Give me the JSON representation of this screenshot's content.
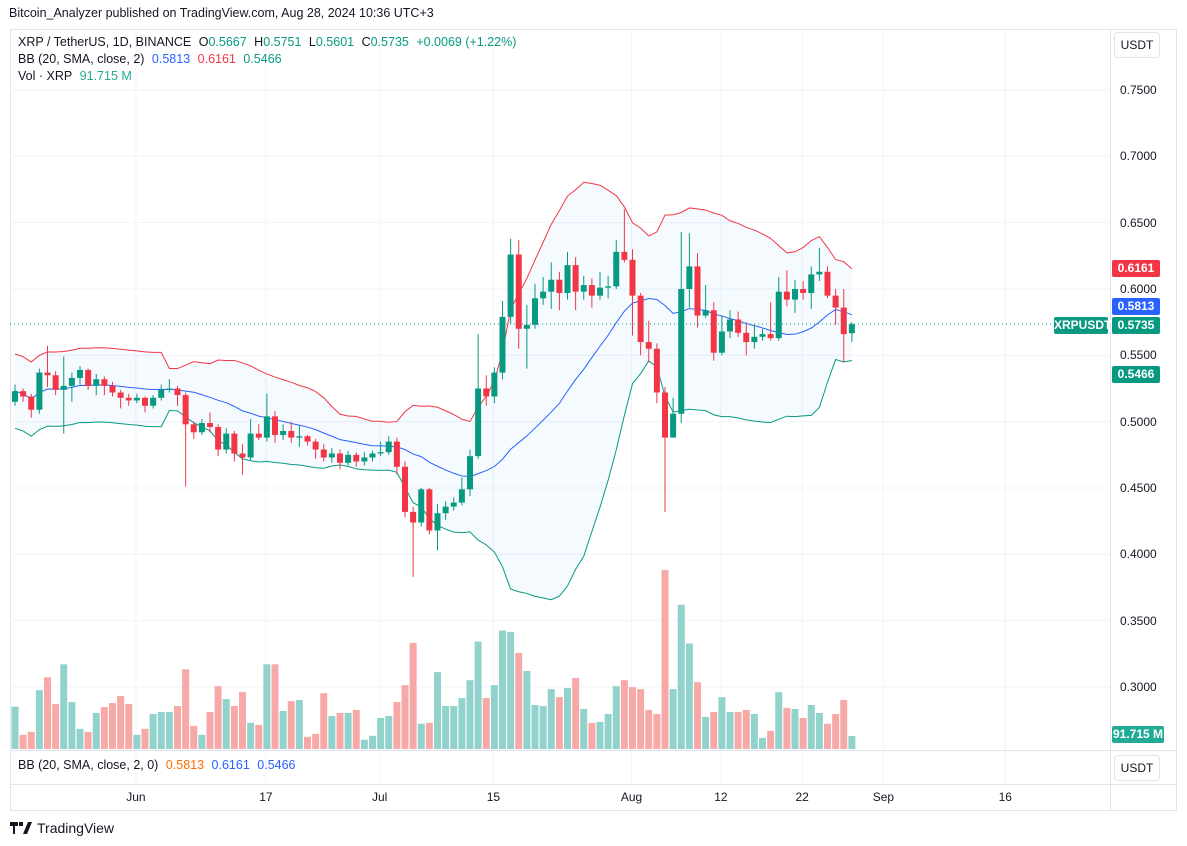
{
  "publisher_line": "Bitcoin_Analyzer published on TradingView.com, Aug 28, 2024 10:36 UTC+3",
  "legend": {
    "symbol": "XRP / TetherUS, 1D, BINANCE",
    "o_label": "O",
    "o": "0.5667",
    "h_label": "H",
    "h": "0.5751",
    "l_label": "L",
    "l": "0.5601",
    "c_label": "C",
    "c": "0.5735",
    "change": "+0.0069 (+1.22%)",
    "bb_label": "BB (20, SMA, close, 2)",
    "bb_basis": "0.5813",
    "bb_upper": "0.6161",
    "bb_lower": "0.5466",
    "vol_label": "Vol · XRP",
    "vol_value": "91.715 M"
  },
  "lower_pane": {
    "bb_label": "BB (20, SMA, close, 2, 0)",
    "basis": "0.5813",
    "upper": "0.6161",
    "lower": "0.5466",
    "currency": "USDT"
  },
  "price_axis": {
    "currency": "USDT",
    "ticks": [
      "0.7500",
      "0.7000",
      "0.6500",
      "0.6000",
      "0.5500",
      "0.5000",
      "0.4500",
      "0.4000",
      "0.3500",
      "0.3000"
    ],
    "labels": {
      "upper": "0.6161",
      "basis": "0.5813",
      "last": "0.5735",
      "symbol_tag": "XRPUSDT",
      "lower": "0.5466",
      "volume": "91.715 M"
    }
  },
  "footer": {
    "brand": "TradingView"
  },
  "colors": {
    "up": "#089981",
    "down": "#f23645",
    "bb_upper": "#f23645",
    "bb_basis": "#2962ff",
    "bb_lower": "#089981",
    "vol_up": "#92d2cc",
    "vol_down": "#f7a9a7"
  },
  "chart_data": {
    "type": "candlestick",
    "symbol": "XRPUSDT",
    "interval": "1D",
    "x_ticks": [
      "Jun",
      "17",
      "Jul",
      "15",
      "Aug",
      "12",
      "22",
      "Sep",
      "16"
    ],
    "y_range": [
      0.28,
      0.78
    ],
    "grid": true,
    "indicators": [
      "BB (20, SMA, close, 2)",
      "Volume"
    ],
    "ohlc": [
      [
        0.515,
        0.528,
        0.512,
        0.523
      ],
      [
        0.523,
        0.525,
        0.515,
        0.519
      ],
      [
        0.519,
        0.521,
        0.503,
        0.509
      ],
      [
        0.509,
        0.54,
        0.506,
        0.537
      ],
      [
        0.537,
        0.557,
        0.526,
        0.535
      ],
      [
        0.535,
        0.538,
        0.52,
        0.524
      ],
      [
        0.524,
        0.549,
        0.491,
        0.527
      ],
      [
        0.527,
        0.537,
        0.515,
        0.533
      ],
      [
        0.533,
        0.542,
        0.528,
        0.539
      ],
      [
        0.539,
        0.54,
        0.524,
        0.527
      ],
      [
        0.527,
        0.536,
        0.52,
        0.532
      ],
      [
        0.532,
        0.534,
        0.52,
        0.527
      ],
      [
        0.527,
        0.53,
        0.519,
        0.522
      ],
      [
        0.522,
        0.524,
        0.51,
        0.518
      ],
      [
        0.518,
        0.521,
        0.512,
        0.516
      ],
      [
        0.516,
        0.521,
        0.514,
        0.518
      ],
      [
        0.518,
        0.519,
        0.507,
        0.512
      ],
      [
        0.512,
        0.52,
        0.51,
        0.518
      ],
      [
        0.518,
        0.528,
        0.516,
        0.524
      ],
      [
        0.524,
        0.532,
        0.522,
        0.525
      ],
      [
        0.525,
        0.527,
        0.512,
        0.52
      ],
      [
        0.52,
        0.522,
        0.451,
        0.498
      ],
      [
        0.498,
        0.5,
        0.487,
        0.492
      ],
      [
        0.492,
        0.502,
        0.49,
        0.499
      ],
      [
        0.499,
        0.507,
        0.492,
        0.496
      ],
      [
        0.496,
        0.498,
        0.474,
        0.479
      ],
      [
        0.479,
        0.495,
        0.476,
        0.491
      ],
      [
        0.491,
        0.493,
        0.47,
        0.476
      ],
      [
        0.476,
        0.483,
        0.46,
        0.473
      ],
      [
        0.473,
        0.502,
        0.471,
        0.491
      ],
      [
        0.491,
        0.498,
        0.486,
        0.488
      ],
      [
        0.488,
        0.521,
        0.485,
        0.504
      ],
      [
        0.504,
        0.508,
        0.484,
        0.49
      ],
      [
        0.49,
        0.498,
        0.486,
        0.493
      ],
      [
        0.493,
        0.5,
        0.484,
        0.488
      ],
      [
        0.488,
        0.497,
        0.481,
        0.489
      ],
      [
        0.489,
        0.49,
        0.482,
        0.485
      ],
      [
        0.485,
        0.487,
        0.472,
        0.479
      ],
      [
        0.479,
        0.483,
        0.47,
        0.473
      ],
      [
        0.473,
        0.48,
        0.469,
        0.476
      ],
      [
        0.476,
        0.479,
        0.464,
        0.469
      ],
      [
        0.469,
        0.478,
        0.467,
        0.475
      ],
      [
        0.475,
        0.477,
        0.466,
        0.47
      ],
      [
        0.47,
        0.477,
        0.467,
        0.473
      ],
      [
        0.473,
        0.478,
        0.47,
        0.476
      ],
      [
        0.476,
        0.485,
        0.474,
        0.477
      ],
      [
        0.477,
        0.489,
        0.475,
        0.485
      ],
      [
        0.485,
        0.488,
        0.46,
        0.466
      ],
      [
        0.466,
        0.47,
        0.428,
        0.432
      ],
      [
        0.432,
        0.436,
        0.383,
        0.424
      ],
      [
        0.424,
        0.45,
        0.421,
        0.449
      ],
      [
        0.449,
        0.45,
        0.415,
        0.418
      ],
      [
        0.418,
        0.438,
        0.403,
        0.431
      ],
      [
        0.431,
        0.44,
        0.426,
        0.436
      ],
      [
        0.436,
        0.443,
        0.433,
        0.439
      ],
      [
        0.439,
        0.458,
        0.437,
        0.449
      ],
      [
        0.449,
        0.479,
        0.444,
        0.474
      ],
      [
        0.474,
        0.566,
        0.472,
        0.525
      ],
      [
        0.525,
        0.535,
        0.512,
        0.519
      ],
      [
        0.519,
        0.541,
        0.514,
        0.537
      ],
      [
        0.537,
        0.591,
        0.532,
        0.579
      ],
      [
        0.579,
        0.638,
        0.574,
        0.626
      ],
      [
        0.626,
        0.637,
        0.555,
        0.57
      ],
      [
        0.57,
        0.588,
        0.54,
        0.573
      ],
      [
        0.573,
        0.604,
        0.57,
        0.593
      ],
      [
        0.593,
        0.609,
        0.588,
        0.598
      ],
      [
        0.598,
        0.62,
        0.585,
        0.607
      ],
      [
        0.607,
        0.613,
        0.584,
        0.597
      ],
      [
        0.597,
        0.628,
        0.592,
        0.618
      ],
      [
        0.618,
        0.624,
        0.584,
        0.598
      ],
      [
        0.598,
        0.61,
        0.592,
        0.603
      ],
      [
        0.603,
        0.608,
        0.586,
        0.595
      ],
      [
        0.595,
        0.613,
        0.592,
        0.601
      ],
      [
        0.601,
        0.61,
        0.593,
        0.602
      ],
      [
        0.602,
        0.637,
        0.6,
        0.628
      ],
      [
        0.628,
        0.66,
        0.62,
        0.622
      ],
      [
        0.622,
        0.63,
        0.565,
        0.595
      ],
      [
        0.595,
        0.597,
        0.55,
        0.56
      ],
      [
        0.56,
        0.576,
        0.545,
        0.555
      ],
      [
        0.555,
        0.559,
        0.514,
        0.522
      ],
      [
        0.522,
        0.526,
        0.432,
        0.488
      ],
      [
        0.488,
        0.518,
        0.488,
        0.506
      ],
      [
        0.506,
        0.643,
        0.499,
        0.6
      ],
      [
        0.6,
        0.642,
        0.586,
        0.617
      ],
      [
        0.617,
        0.627,
        0.571,
        0.58
      ],
      [
        0.58,
        0.603,
        0.578,
        0.584
      ],
      [
        0.584,
        0.59,
        0.546,
        0.552
      ],
      [
        0.552,
        0.58,
        0.55,
        0.568
      ],
      [
        0.568,
        0.584,
        0.563,
        0.577
      ],
      [
        0.577,
        0.583,
        0.564,
        0.567
      ],
      [
        0.567,
        0.575,
        0.55,
        0.56
      ],
      [
        0.56,
        0.573,
        0.555,
        0.564
      ],
      [
        0.564,
        0.57,
        0.561,
        0.566
      ],
      [
        0.566,
        0.59,
        0.561,
        0.563
      ],
      [
        0.563,
        0.609,
        0.561,
        0.598
      ],
      [
        0.598,
        0.614,
        0.587,
        0.592
      ],
      [
        0.592,
        0.607,
        0.582,
        0.6
      ],
      [
        0.6,
        0.606,
        0.592,
        0.597
      ],
      [
        0.597,
        0.617,
        0.585,
        0.611
      ],
      [
        0.611,
        0.631,
        0.606,
        0.613
      ],
      [
        0.613,
        0.617,
        0.593,
        0.595
      ],
      [
        0.595,
        0.6,
        0.573,
        0.586
      ],
      [
        0.586,
        0.6,
        0.545,
        0.566
      ],
      [
        0.5667,
        0.5751,
        0.5601,
        0.5735
      ]
    ],
    "volume_millions": [
      299,
      100,
      121,
      415,
      506,
      317,
      597,
      331,
      142,
      121,
      254,
      296,
      324,
      373,
      317,
      100,
      142,
      247,
      261,
      261,
      303,
      562,
      163,
      100,
      261,
      443,
      352,
      303,
      401,
      184,
      170,
      597,
      597,
      268,
      338,
      345,
      86,
      107,
      394,
      233,
      254,
      254,
      275,
      65,
      93,
      219,
      233,
      331,
      450,
      748,
      178,
      184,
      542,
      303,
      303,
      359,
      485,
      758,
      359,
      450,
      835,
      825,
      677,
      550,
      310,
      303,
      422,
      366,
      429,
      501,
      282,
      184,
      191,
      247,
      443,
      485,
      436,
      422,
      275,
      247,
      1262,
      422,
      1017,
      744,
      471,
      226,
      261,
      366,
      261,
      261,
      275,
      247,
      79,
      128,
      401,
      289,
      282,
      219,
      310,
      254,
      178,
      247,
      345,
      91.715
    ],
    "last_price": 0.5735,
    "bb_last": {
      "basis": 0.5813,
      "upper": 0.6161,
      "lower": 0.5466
    }
  }
}
